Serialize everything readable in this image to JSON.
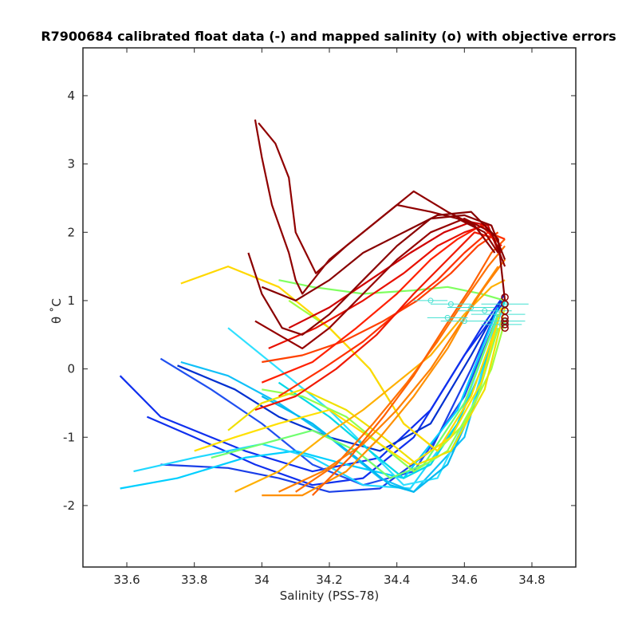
{
  "chart_data": {
    "type": "line",
    "title": "R7900684 calibrated float data (-) and mapped salinity (o) with objective errors",
    "xlabel": "Salinity (PSS-78)",
    "ylabel": "θ ˚C",
    "xlim": [
      33.47,
      34.93
    ],
    "ylim": [
      -2.9,
      4.7
    ],
    "xticks": [
      "33.6",
      "33.8",
      "34",
      "34.2",
      "34.4",
      "34.6",
      "34.8"
    ],
    "xtick_values": [
      33.6,
      33.8,
      34.0,
      34.2,
      34.4,
      34.6,
      34.8
    ],
    "yticks": [
      "-2",
      "-1",
      "0",
      "1",
      "2",
      "3",
      "4"
    ],
    "ytick_values": [
      -2,
      -1,
      0,
      1,
      2,
      3,
      4
    ],
    "grid": false,
    "colormap": "jet",
    "series_note_colors": [
      "#00008f",
      "#0040ff",
      "#00bfff",
      "#40ff80",
      "#ffdf00",
      "#ff8000",
      "#ff2000",
      "#8f0000"
    ],
    "series": [
      {
        "color": "#1030ee",
        "x": [
          33.58,
          33.7,
          33.95,
          34.15,
          34.35,
          34.5,
          34.65,
          34.72
        ],
        "y": [
          -0.1,
          -0.7,
          -1.2,
          -1.5,
          -1.3,
          -0.6,
          0.6,
          1.1
        ]
      },
      {
        "color": "#1030ee",
        "x": [
          33.66,
          33.8,
          33.98,
          34.15,
          34.3,
          34.45,
          34.6,
          34.72
        ],
        "y": [
          -0.7,
          -1.0,
          -1.4,
          -1.7,
          -1.6,
          -1.0,
          0.2,
          1.0
        ]
      },
      {
        "color": "#2050f0",
        "x": [
          33.7,
          33.85,
          34.0,
          34.15,
          34.3,
          34.45,
          34.6,
          34.7
        ],
        "y": [
          0.15,
          -0.3,
          -0.8,
          -1.4,
          -1.7,
          -1.5,
          -0.4,
          0.8
        ]
      },
      {
        "color": "#1a3fe8",
        "x": [
          33.7,
          33.9,
          34.05,
          34.2,
          34.35,
          34.5,
          34.62,
          34.7
        ],
        "y": [
          -1.4,
          -1.45,
          -1.6,
          -1.8,
          -1.75,
          -1.2,
          0.0,
          0.9
        ]
      },
      {
        "color": "#0030d0",
        "x": [
          33.75,
          33.92,
          34.05,
          34.2,
          34.35,
          34.5,
          34.62,
          34.71
        ],
        "y": [
          0.05,
          -0.3,
          -0.7,
          -1.0,
          -1.2,
          -0.8,
          0.2,
          1.0
        ]
      },
      {
        "color": "#00cfff",
        "x": [
          33.58,
          33.75,
          33.95,
          34.1,
          34.25,
          34.42,
          34.58,
          34.7
        ],
        "y": [
          -1.75,
          -1.6,
          -1.3,
          -1.2,
          -1.4,
          -1.6,
          -0.6,
          0.9
        ]
      },
      {
        "color": "#20d8ff",
        "x": [
          33.62,
          33.8,
          34.0,
          34.15,
          34.3,
          34.44,
          34.58,
          34.7
        ],
        "y": [
          -1.5,
          -1.3,
          -1.1,
          -1.3,
          -1.7,
          -1.75,
          -0.8,
          0.8
        ]
      },
      {
        "color": "#10c0f8",
        "x": [
          33.76,
          33.9,
          34.05,
          34.2,
          34.35,
          34.45,
          34.6,
          34.7
        ],
        "y": [
          0.1,
          -0.1,
          -0.5,
          -1.0,
          -1.6,
          -1.8,
          -1.0,
          0.7
        ]
      },
      {
        "color": "#30e0ff",
        "x": [
          33.9,
          34.05,
          34.2,
          34.32,
          34.42,
          34.52,
          34.62,
          34.7
        ],
        "y": [
          0.6,
          0.0,
          -0.6,
          -1.2,
          -1.7,
          -1.6,
          -0.6,
          0.8
        ]
      },
      {
        "color": "#00b8f0",
        "x": [
          34.0,
          34.15,
          34.28,
          34.38,
          34.45,
          34.55,
          34.64,
          34.71
        ],
        "y": [
          -0.4,
          -0.8,
          -1.3,
          -1.7,
          -1.8,
          -1.4,
          -0.4,
          0.9
        ]
      },
      {
        "color": "#00d8e8",
        "x": [
          34.05,
          34.2,
          34.32,
          34.42,
          34.5,
          34.58,
          34.66,
          34.72
        ],
        "y": [
          -0.2,
          -0.7,
          -1.2,
          -1.6,
          -1.4,
          -0.8,
          0.1,
          1.0
        ]
      },
      {
        "color": "#70ff70",
        "x": [
          33.85,
          34.0,
          34.15,
          34.28,
          34.38,
          34.48,
          34.6,
          34.7
        ],
        "y": [
          -1.3,
          -1.1,
          -0.9,
          -1.2,
          -1.6,
          -1.4,
          -0.5,
          0.8
        ]
      },
      {
        "color": "#80ff60",
        "x": [
          34.05,
          34.15,
          34.3,
          34.45,
          34.55,
          34.65,
          34.72
        ],
        "y": [
          1.3,
          1.2,
          1.1,
          1.15,
          1.2,
          1.1,
          1.0
        ]
      },
      {
        "color": "#90ff50",
        "x": [
          34.0,
          34.12,
          34.25,
          34.35,
          34.45,
          34.55,
          34.64,
          34.7
        ],
        "y": [
          -0.3,
          -0.4,
          -0.7,
          -1.1,
          -1.5,
          -1.2,
          -0.4,
          0.6
        ]
      },
      {
        "color": "#a0ff40",
        "x": [
          34.08,
          34.2,
          34.32,
          34.42,
          34.52,
          34.6,
          34.68,
          34.72
        ],
        "y": [
          1.0,
          0.6,
          0.0,
          -0.8,
          -1.2,
          -0.8,
          0.0,
          0.7
        ]
      },
      {
        "color": "#ffe000",
        "x": [
          33.8,
          33.92,
          34.05,
          34.2,
          34.32,
          34.44,
          34.56,
          34.65,
          34.71
        ],
        "y": [
          -1.2,
          -1.0,
          -0.8,
          -0.6,
          -1.0,
          -1.4,
          -1.0,
          -0.2,
          0.9
        ]
      },
      {
        "color": "#ffd800",
        "x": [
          33.76,
          33.9,
          34.05,
          34.2,
          34.32,
          34.42,
          34.52,
          34.62,
          34.7
        ],
        "y": [
          1.25,
          1.5,
          1.2,
          0.6,
          0.0,
          -0.8,
          -1.2,
          -0.4,
          0.7
        ]
      },
      {
        "color": "#f0e000",
        "x": [
          33.9,
          34.0,
          34.12,
          34.25,
          34.36,
          34.46,
          34.56,
          34.66,
          34.72
        ],
        "y": [
          -0.9,
          -0.5,
          -0.3,
          -0.6,
          -1.0,
          -1.4,
          -1.2,
          -0.3,
          0.9
        ]
      },
      {
        "color": "#ffb000",
        "x": [
          33.92,
          34.05,
          34.18,
          34.3,
          34.4,
          34.5,
          34.6,
          34.68,
          34.72
        ],
        "y": [
          -1.8,
          -1.5,
          -1.0,
          -0.6,
          -0.2,
          0.2,
          0.8,
          1.2,
          1.3
        ]
      },
      {
        "color": "#ff9000",
        "x": [
          34.0,
          34.12,
          34.25,
          34.35,
          34.45,
          34.55,
          34.63,
          34.7
        ],
        "y": [
          -1.85,
          -1.85,
          -1.5,
          -1.0,
          -0.4,
          0.3,
          1.0,
          1.5
        ]
      },
      {
        "color": "#ff8000",
        "x": [
          34.05,
          34.18,
          34.3,
          34.4,
          34.5,
          34.58,
          34.66,
          34.72
        ],
        "y": [
          -1.8,
          -1.5,
          -1.1,
          -0.6,
          0.0,
          0.6,
          1.2,
          1.6
        ]
      },
      {
        "color": "#ff7000",
        "x": [
          34.1,
          34.22,
          34.33,
          34.43,
          34.52,
          34.6,
          34.67,
          34.72
        ],
        "y": [
          -1.8,
          -1.4,
          -0.8,
          -0.2,
          0.4,
          1.0,
          1.5,
          1.8
        ]
      },
      {
        "color": "#ff6000",
        "x": [
          34.15,
          34.26,
          34.36,
          34.45,
          34.54,
          34.62,
          34.68,
          34.72
        ],
        "y": [
          -1.85,
          -1.3,
          -0.7,
          -0.1,
          0.6,
          1.2,
          1.7,
          1.9
        ]
      },
      {
        "color": "#ff4000",
        "x": [
          34.0,
          34.12,
          34.24,
          34.36,
          34.46,
          34.56,
          34.64,
          34.7
        ],
        "y": [
          0.1,
          0.2,
          0.4,
          0.7,
          1.0,
          1.4,
          1.8,
          2.0
        ]
      },
      {
        "color": "#ff3000",
        "x": [
          34.05,
          34.18,
          34.3,
          34.42,
          34.52,
          34.6,
          34.67,
          34.72
        ],
        "y": [
          -0.4,
          0.0,
          0.4,
          0.9,
          1.3,
          1.7,
          2.0,
          1.9
        ]
      },
      {
        "color": "#ff2000",
        "x": [
          34.0,
          34.15,
          34.28,
          34.4,
          34.5,
          34.58,
          34.65,
          34.71
        ],
        "y": [
          -0.2,
          0.1,
          0.6,
          1.1,
          1.6,
          1.9,
          2.1,
          1.8
        ]
      },
      {
        "color": "#e81000",
        "x": [
          34.02,
          34.16,
          34.3,
          34.42,
          34.52,
          34.6,
          34.66,
          34.71
        ],
        "y": [
          0.3,
          0.6,
          1.0,
          1.4,
          1.8,
          2.0,
          2.1,
          1.7
        ]
      },
      {
        "color": "#d00000",
        "x": [
          34.08,
          34.2,
          34.32,
          34.44,
          34.54,
          34.62,
          34.67,
          34.71
        ],
        "y": [
          0.6,
          0.9,
          1.3,
          1.7,
          2.0,
          2.15,
          2.1,
          1.6
        ]
      },
      {
        "color": "#f01800",
        "x": [
          33.98,
          34.1,
          34.22,
          34.34,
          34.45,
          34.55,
          34.63,
          34.7
        ],
        "y": [
          -0.6,
          -0.4,
          0.0,
          0.5,
          1.1,
          1.6,
          2.0,
          1.9
        ]
      },
      {
        "color": "#8f0000",
        "x": [
          33.98,
          34.0,
          34.03,
          34.08,
          34.1,
          34.12,
          34.2,
          34.3,
          34.4,
          34.5,
          34.58,
          34.66,
          34.7
        ],
        "y": [
          3.65,
          3.1,
          2.4,
          1.7,
          1.3,
          1.1,
          1.6,
          2.0,
          2.4,
          2.3,
          2.2,
          2.0,
          1.7
        ]
      },
      {
        "color": "#900000",
        "x": [
          33.99,
          34.04,
          34.08,
          34.1,
          34.16,
          34.25,
          34.35,
          34.45,
          34.55,
          34.63,
          34.69
        ],
        "y": [
          3.6,
          3.3,
          2.8,
          2.0,
          1.4,
          1.8,
          2.2,
          2.6,
          2.3,
          2.1,
          1.7
        ]
      },
      {
        "color": "#8a0000",
        "x": [
          33.96,
          34.0,
          34.06,
          34.12,
          34.2,
          34.3,
          34.4,
          34.5,
          34.6,
          34.68,
          34.72
        ],
        "y": [
          1.7,
          1.1,
          0.6,
          0.5,
          0.8,
          1.3,
          1.8,
          2.2,
          2.25,
          2.1,
          1.6
        ]
      },
      {
        "color": "#950000",
        "x": [
          33.98,
          34.05,
          34.12,
          34.2,
          34.3,
          34.4,
          34.5,
          34.6,
          34.68,
          34.72
        ],
        "y": [
          0.7,
          0.5,
          0.3,
          0.6,
          1.1,
          1.6,
          2.0,
          2.2,
          2.0,
          1.5
        ]
      },
      {
        "color": "#880000",
        "x": [
          34.0,
          34.1,
          34.2,
          34.3,
          34.42,
          34.52,
          34.62,
          34.7,
          34.72
        ],
        "y": [
          1.2,
          1.0,
          1.3,
          1.7,
          2.0,
          2.25,
          2.3,
          1.9,
          1.0
        ]
      }
    ],
    "mapped_points": {
      "color": "#40e0d0",
      "x": [
        34.5,
        34.56,
        34.62,
        34.66,
        34.7,
        34.72,
        34.72,
        34.71,
        34.6,
        34.55
      ],
      "y": [
        1.0,
        0.95,
        0.9,
        0.85,
        0.8,
        0.7,
        0.95,
        0.65,
        0.7,
        0.75
      ],
      "errors": [
        0.05,
        0.06,
        0.07,
        0.08,
        0.08,
        0.06,
        0.07,
        0.06,
        0.07,
        0.06
      ]
    },
    "mapped_markers": {
      "color": "#8f0000",
      "x": [
        34.72,
        34.72,
        34.72,
        34.72,
        34.72,
        34.72,
        34.72
      ],
      "y": [
        1.05,
        0.95,
        0.85,
        0.75,
        0.7,
        0.65,
        0.6
      ]
    }
  }
}
